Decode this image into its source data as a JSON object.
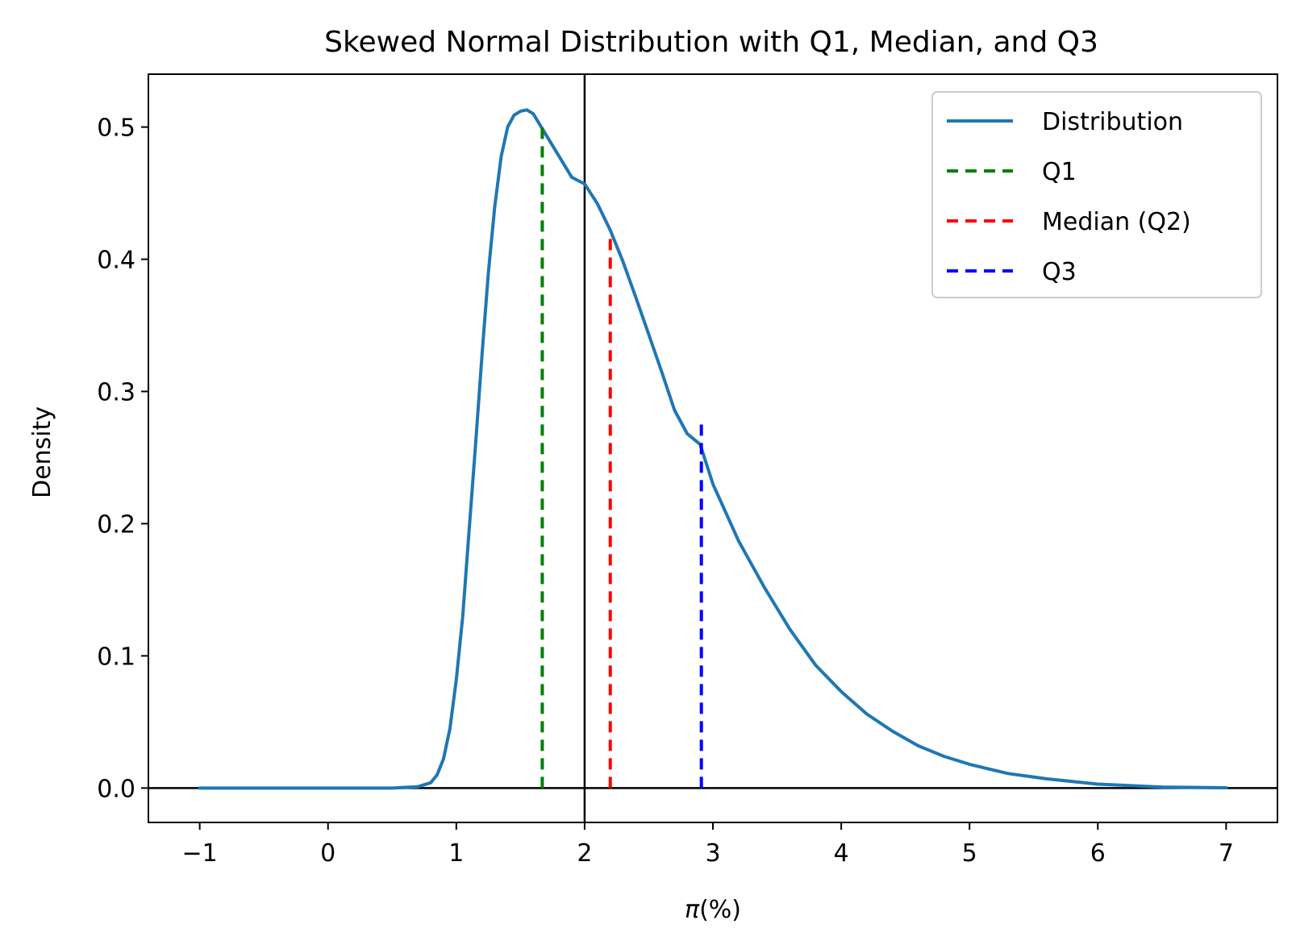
{
  "chart_data": {
    "type": "line",
    "title": "Skewed Normal Distribution with Q1, Median, and Q3",
    "xlabel_symbol": "π",
    "xlabel_unit": "(%)",
    "ylabel": "Density",
    "xlim": [
      -1.4,
      7.4
    ],
    "ylim": [
      -0.026,
      0.54
    ],
    "xticks": [
      -1,
      0,
      1,
      2,
      3,
      4,
      5,
      6,
      7
    ],
    "xtick_labels": [
      "−1",
      "0",
      "1",
      "2",
      "3",
      "4",
      "5",
      "6",
      "7"
    ],
    "yticks": [
      0.0,
      0.1,
      0.2,
      0.3,
      0.4,
      0.5
    ],
    "ytick_labels": [
      "0.0",
      "0.1",
      "0.2",
      "0.3",
      "0.4",
      "0.5"
    ],
    "grid": false,
    "legend_position": "top-right",
    "reference_lines": {
      "vertical_x": 2.0,
      "horizontal_y": 0.0,
      "color": "#000000"
    },
    "series": [
      {
        "name": "Distribution",
        "style": "solid",
        "color": "#1f77b4",
        "x": [
          -1.0,
          0.5,
          0.7,
          0.8,
          0.85,
          0.9,
          0.95,
          1.0,
          1.05,
          1.1,
          1.15,
          1.2,
          1.25,
          1.3,
          1.35,
          1.4,
          1.45,
          1.5,
          1.55,
          1.6,
          1.65,
          1.7,
          1.8,
          1.9,
          2.0,
          2.1,
          2.2,
          2.3,
          2.4,
          2.5,
          2.6,
          2.7,
          2.8,
          2.9,
          3.0,
          3.2,
          3.4,
          3.6,
          3.8,
          4.0,
          4.2,
          4.4,
          4.6,
          4.8,
          5.0,
          5.3,
          5.6,
          6.0,
          6.5,
          7.0
        ],
        "y": [
          0.0,
          0.0,
          0.001,
          0.004,
          0.01,
          0.022,
          0.045,
          0.082,
          0.13,
          0.195,
          0.26,
          0.327,
          0.39,
          0.44,
          0.478,
          0.5,
          0.509,
          0.512,
          0.513,
          0.51,
          0.502,
          0.494,
          0.478,
          0.462,
          0.457,
          0.442,
          0.422,
          0.398,
          0.371,
          0.343,
          0.315,
          0.286,
          0.268,
          0.26,
          0.23,
          0.187,
          0.152,
          0.12,
          0.093,
          0.073,
          0.056,
          0.043,
          0.032,
          0.024,
          0.018,
          0.011,
          0.007,
          0.003,
          0.0008,
          0.0002
        ]
      },
      {
        "name": "Q1",
        "style": "dashed",
        "color": "#008000",
        "x": 1.67,
        "y_top": 0.5
      },
      {
        "name": "Median (Q2)",
        "style": "dashed",
        "color": "#ff0000",
        "x": 2.2,
        "y_top": 0.42
      },
      {
        "name": "Q3",
        "style": "dashed",
        "color": "#0000ff",
        "x": 2.91,
        "y_top": 0.275
      }
    ]
  }
}
